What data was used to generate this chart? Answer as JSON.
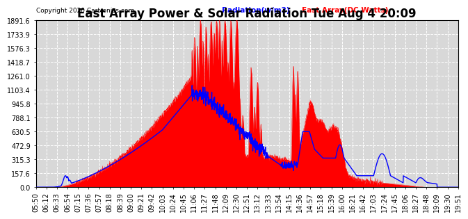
{
  "title": "East Array Power & Solar Radiation Tue Aug 4 20:09",
  "copyright": "Copyright 2020 Cartronics.com",
  "legend_radiation": "Radiation(w/m2)",
  "legend_east": "East Array(DC Watts)",
  "radiation_color": "red",
  "east_color": "blue",
  "ymax": 1891.6,
  "yticks": [
    0.0,
    157.6,
    315.3,
    472.9,
    630.5,
    788.1,
    945.8,
    1103.4,
    1261.0,
    1418.7,
    1576.3,
    1733.9,
    1891.6
  ],
  "background_color": "#ffffff",
  "plot_bg_color": "#d8d8d8",
  "grid_color": "#ffffff",
  "title_fontsize": 12,
  "tick_fontsize": 7,
  "x_labels": [
    "05:50",
    "06:12",
    "06:33",
    "06:54",
    "07:15",
    "07:36",
    "07:57",
    "08:18",
    "08:39",
    "09:00",
    "09:21",
    "09:42",
    "10:03",
    "10:24",
    "10:45",
    "11:06",
    "11:27",
    "11:48",
    "12:09",
    "12:30",
    "12:51",
    "13:12",
    "13:33",
    "13:54",
    "14:15",
    "14:36",
    "14:57",
    "15:18",
    "15:39",
    "16:00",
    "16:21",
    "16:42",
    "17:03",
    "17:24",
    "17:45",
    "18:06",
    "18:27",
    "18:48",
    "19:09",
    "19:30",
    "19:51"
  ]
}
